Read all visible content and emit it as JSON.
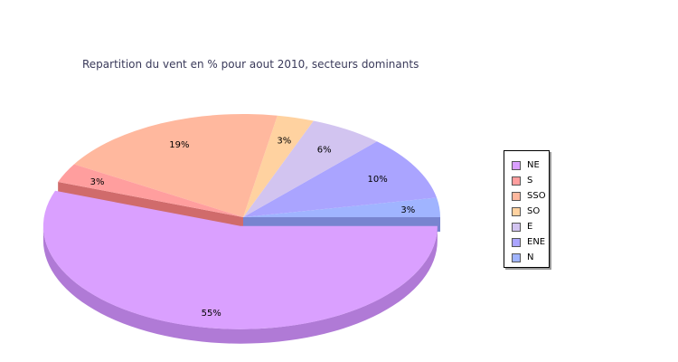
{
  "chart_data": {
    "type": "pie",
    "title": "Repartition du vent en % pour aout 2010, secteurs dominants",
    "slices": [
      {
        "name": "NE",
        "value": 55,
        "label": "55%",
        "color": "#daa0ff",
        "side": "#b07ad6"
      },
      {
        "name": "S",
        "value": 3,
        "label": "3%",
        "color": "#ff9e9e",
        "side": "#d06b6b"
      },
      {
        "name": "SSO",
        "value": 19,
        "label": "19%",
        "color": "#ffb89e",
        "side": "#d08c72"
      },
      {
        "name": "SO",
        "value": 3,
        "label": "3%",
        "color": "#ffd2a0",
        "side": "#d0a478"
      },
      {
        "name": "E",
        "value": 6,
        "label": "6%",
        "color": "#d2c4f0",
        "side": "#a898c8"
      },
      {
        "name": "ENE",
        "value": 10,
        "label": "10%",
        "color": "#aaa4ff",
        "side": "#7f7ad0"
      },
      {
        "name": "N",
        "value": 3,
        "label": "3%",
        "color": "#a0b4ff",
        "side": "#7884d0"
      }
    ],
    "legend_position": "right",
    "exploded_slice": "NE",
    "style": "3d"
  }
}
